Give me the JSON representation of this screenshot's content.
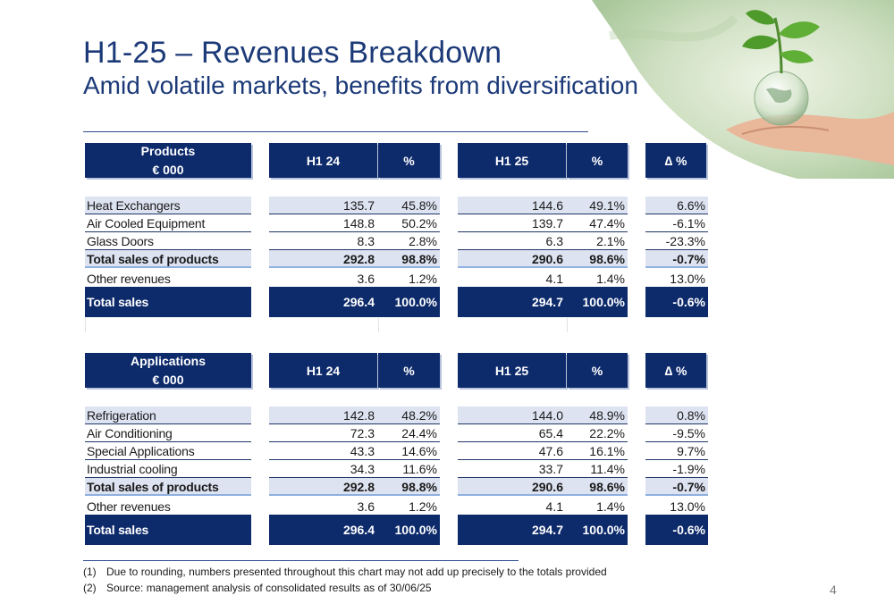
{
  "title": "H1-25 – Revenues Breakdown",
  "subtitle": "Amid volatile markets, benefits from diversification",
  "colors": {
    "navy": "#0d2a6b",
    "shade": "#dde3f1",
    "title": "#1c3a78"
  },
  "products": {
    "header": {
      "label1": "Products",
      "label2": "€ 000",
      "h1_24": "H1 24",
      "pct1": "%",
      "h1_25": "H1 25",
      "pct2": "%",
      "delta": "∆ %"
    },
    "rows": [
      {
        "label": "Heat Exchangers",
        "v1": "135.7",
        "p1": "45.8%",
        "v2": "144.6",
        "p2": "49.1%",
        "d": "6.6%"
      },
      {
        "label": "Air Cooled Equipment",
        "v1": "148.8",
        "p1": "50.2%",
        "v2": "139.7",
        "p2": "47.4%",
        "d": "-6.1%"
      },
      {
        "label": "Glass Doors",
        "v1": "8.3",
        "p1": "2.8%",
        "v2": "6.3",
        "p2": "2.1%",
        "d": "-23.3%"
      },
      {
        "label": "Total sales of products",
        "v1": "292.8",
        "p1": "98.8%",
        "v2": "290.6",
        "p2": "98.6%",
        "d": "-0.7%"
      },
      {
        "label": "Other revenues",
        "v1": "3.6",
        "p1": "1.2%",
        "v2": "4.1",
        "p2": "1.4%",
        "d": "13.0%"
      }
    ],
    "total": {
      "label": "Total sales",
      "v1": "296.4",
      "p1": "100.0%",
      "v2": "294.7",
      "p2": "100.0%",
      "d": "-0.6%"
    }
  },
  "applications": {
    "header": {
      "label1": "Applications",
      "label2": "€ 000",
      "h1_24": "H1 24",
      "pct1": "%",
      "h1_25": "H1 25",
      "pct2": "%",
      "delta": "∆ %"
    },
    "rows": [
      {
        "label": "Refrigeration",
        "v1": "142.8",
        "p1": "48.2%",
        "v2": "144.0",
        "p2": "48.9%",
        "d": "0.8%"
      },
      {
        "label": "Air Conditioning",
        "v1": "72.3",
        "p1": "24.4%",
        "v2": "65.4",
        "p2": "22.2%",
        "d": "-9.5%"
      },
      {
        "label": "Special Applications",
        "v1": "43.3",
        "p1": "14.6%",
        "v2": "47.6",
        "p2": "16.1%",
        "d": "9.7%"
      },
      {
        "label": "Industrial cooling",
        "v1": "34.3",
        "p1": "11.6%",
        "v2": "33.7",
        "p2": "11.4%",
        "d": "-1.9%"
      },
      {
        "label": "Total sales of products",
        "v1": "292.8",
        "p1": "98.8%",
        "v2": "290.6",
        "p2": "98.6%",
        "d": "-0.7%"
      },
      {
        "label": "Other revenues",
        "v1": "3.6",
        "p1": "1.2%",
        "v2": "4.1",
        "p2": "1.4%",
        "d": "13.0%"
      }
    ],
    "total": {
      "label": "Total sales",
      "v1": "296.4",
      "p1": "100.0%",
      "v2": "294.7",
      "p2": "100.0%",
      "d": "-0.6%"
    }
  },
  "footnotes": [
    {
      "num": "(1)",
      "text": "Due to rounding, numbers presented throughout this chart may not add up precisely to the totals provided"
    },
    {
      "num": "(2)",
      "text": "Source: management analysis of consolidated results as of 30/06/25"
    }
  ],
  "page_number": "4"
}
